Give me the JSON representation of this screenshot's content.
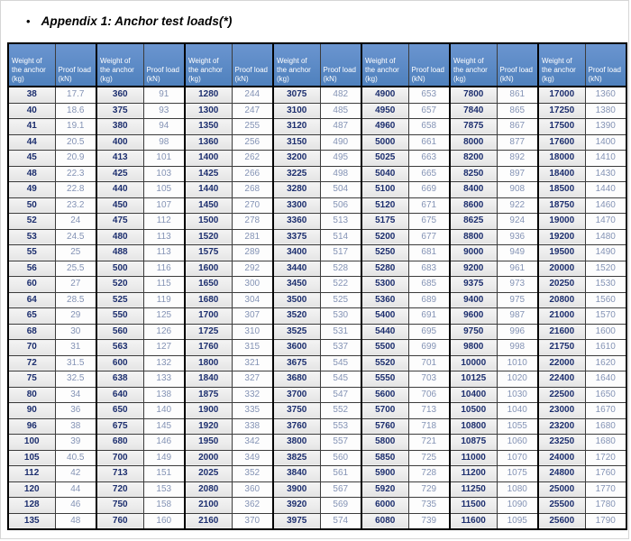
{
  "title": {
    "bullet": "•",
    "text": "Appendix 1: Anchor test loads(*)"
  },
  "table": {
    "description": "Anchor test loads table: 7 repeated column pairs",
    "header_lines": {
      "weight": [
        "Weight of",
        "the anchor",
        "(kg)"
      ],
      "proof": [
        "Proof load",
        "(kN)"
      ]
    },
    "headers": {
      "weight": "Weight of the anchor (kg)",
      "proof": "Proof load (kN)"
    },
    "column_pairs": 7,
    "colors": {
      "header_bg": "#4f81bd",
      "header_text": "#ffffff",
      "weight_text": "#1c2e6e",
      "proof_text": "#8493b5",
      "grid": "#3c3c3c"
    },
    "rows": [
      [
        38,
        17.7,
        360,
        91,
        1280,
        244,
        3075,
        482,
        4900,
        653,
        7800,
        861,
        17000,
        1360
      ],
      [
        40,
        18.6,
        375,
        93,
        1300,
        247,
        3100,
        485,
        4950,
        657,
        7840,
        865,
        17250,
        1380
      ],
      [
        41,
        19.1,
        380,
        94,
        1350,
        255,
        3120,
        487,
        4960,
        658,
        7875,
        867,
        17500,
        1390
      ],
      [
        44,
        20.5,
        400,
        98,
        1360,
        256,
        3150,
        490,
        5000,
        661,
        8000,
        877,
        17600,
        1400
      ],
      [
        45,
        20.9,
        413,
        101,
        1400,
        262,
        3200,
        495,
        5025,
        663,
        8200,
        892,
        18000,
        1410
      ],
      [
        48,
        22.3,
        425,
        103,
        1425,
        266,
        3225,
        498,
        5040,
        665,
        8250,
        897,
        18400,
        1430
      ],
      [
        49,
        22.8,
        440,
        105,
        1440,
        268,
        3280,
        504,
        5100,
        669,
        8400,
        908,
        18500,
        1440
      ],
      [
        50,
        23.2,
        450,
        107,
        1450,
        270,
        3300,
        506,
        5120,
        671,
        8600,
        922,
        18750,
        1460
      ],
      [
        52,
        24,
        475,
        112,
        1500,
        278,
        3360,
        513,
        5175,
        675,
        8625,
        924,
        19000,
        1470
      ],
      [
        53,
        24.5,
        480,
        113,
        1520,
        281,
        3375,
        514,
        5200,
        677,
        8800,
        936,
        19200,
        1480
      ],
      [
        55,
        25,
        488,
        113,
        1575,
        289,
        3400,
        517,
        5250,
        681,
        9000,
        949,
        19500,
        1490
      ],
      [
        56,
        25.5,
        500,
        116,
        1600,
        292,
        3440,
        528,
        5280,
        683,
        9200,
        961,
        20000,
        1520
      ],
      [
        60,
        27,
        520,
        115,
        1650,
        300,
        3450,
        522,
        5300,
        685,
        9375,
        973,
        20250,
        1530
      ],
      [
        64,
        28.5,
        525,
        119,
        1680,
        304,
        3500,
        525,
        5360,
        689,
        9400,
        975,
        20800,
        1560
      ],
      [
        65,
        29,
        550,
        125,
        1700,
        307,
        3520,
        530,
        5400,
        691,
        9600,
        987,
        21000,
        1570
      ],
      [
        68,
        30,
        560,
        126,
        1725,
        310,
        3525,
        531,
        5440,
        695,
        9750,
        996,
        21600,
        1600
      ],
      [
        70,
        31,
        563,
        127,
        1760,
        315,
        3600,
        537,
        5500,
        699,
        9800,
        998,
        21750,
        1610
      ],
      [
        72,
        31.5,
        600,
        132,
        1800,
        321,
        3675,
        545,
        5520,
        701,
        10000,
        1010,
        22000,
        1620
      ],
      [
        75,
        32.5,
        638,
        133,
        1840,
        327,
        3680,
        545,
        5550,
        703,
        10125,
        1020,
        22400,
        1640
      ],
      [
        80,
        34,
        640,
        138,
        1875,
        332,
        3700,
        547,
        5600,
        706,
        10400,
        1030,
        22500,
        1650
      ],
      [
        90,
        36,
        650,
        140,
        1900,
        335,
        3750,
        552,
        5700,
        713,
        10500,
        1040,
        23000,
        1670
      ],
      [
        96,
        38,
        675,
        145,
        1920,
        338,
        3760,
        553,
        5760,
        718,
        10800,
        1055,
        23200,
        1680
      ],
      [
        100,
        39,
        680,
        146,
        1950,
        342,
        3800,
        557,
        5800,
        721,
        10875,
        1060,
        23250,
        1680
      ],
      [
        105,
        40.5,
        700,
        149,
        2000,
        349,
        3825,
        560,
        5850,
        725,
        11000,
        1070,
        24000,
        1720
      ],
      [
        112,
        42,
        713,
        151,
        2025,
        352,
        3840,
        561,
        5900,
        728,
        11200,
        1075,
        24800,
        1760
      ],
      [
        120,
        44,
        720,
        153,
        2080,
        360,
        3900,
        567,
        5920,
        729,
        11250,
        1080,
        25000,
        1770
      ],
      [
        128,
        46,
        750,
        158,
        2100,
        362,
        3920,
        569,
        6000,
        735,
        11500,
        1090,
        25500,
        1780
      ],
      [
        135,
        48,
        760,
        160,
        2160,
        370,
        3975,
        574,
        6080,
        739,
        11600,
        1095,
        25600,
        1790
      ]
    ]
  }
}
